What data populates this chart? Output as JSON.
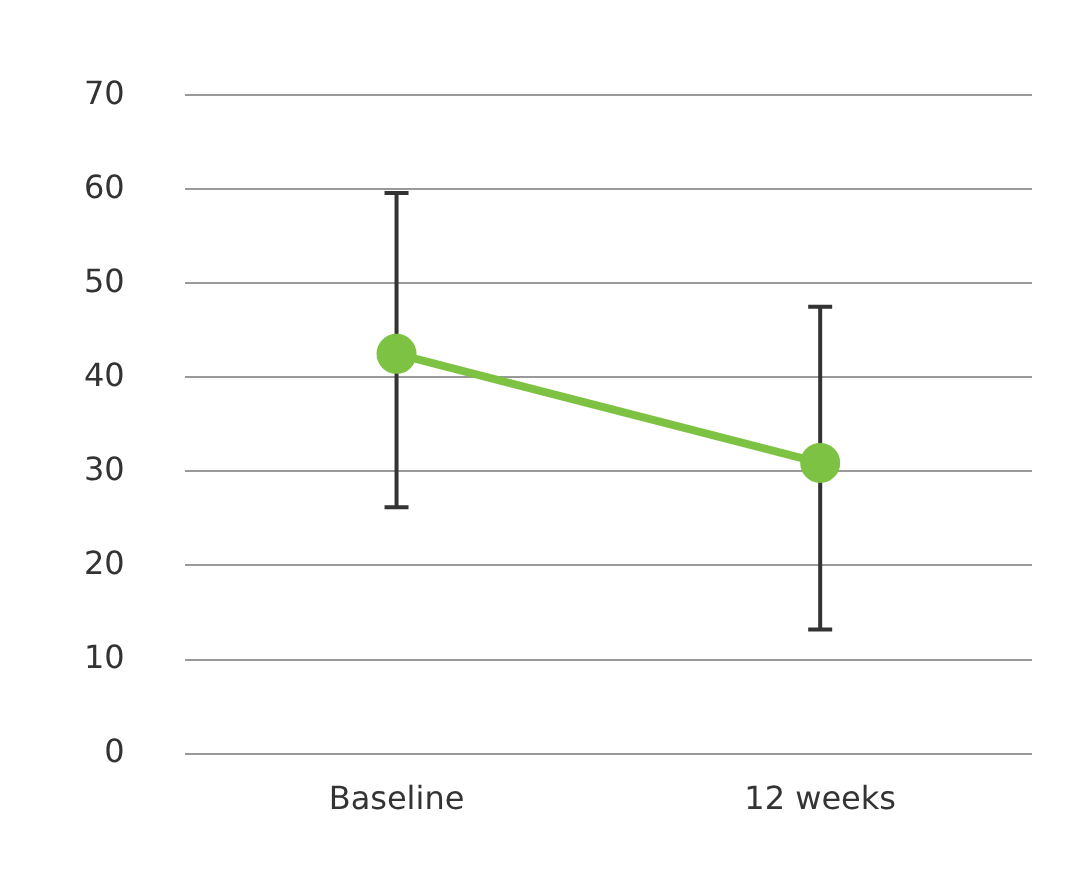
{
  "chart_data": {
    "type": "line",
    "categories": [
      "Baseline",
      "12 weeks"
    ],
    "series": [
      {
        "color": "#7dc242",
        "values": [
          42.5,
          30.9
        ],
        "errors": [
          [
            26.2,
            59.6
          ],
          [
            13.2,
            47.5
          ]
        ]
      }
    ],
    "ylim": [
      0,
      70
    ],
    "yticks": [
      0,
      10,
      20,
      30,
      40,
      50,
      60,
      70
    ],
    "grid": "y",
    "marker": "circle",
    "line_style": "solid",
    "legend": false
  }
}
